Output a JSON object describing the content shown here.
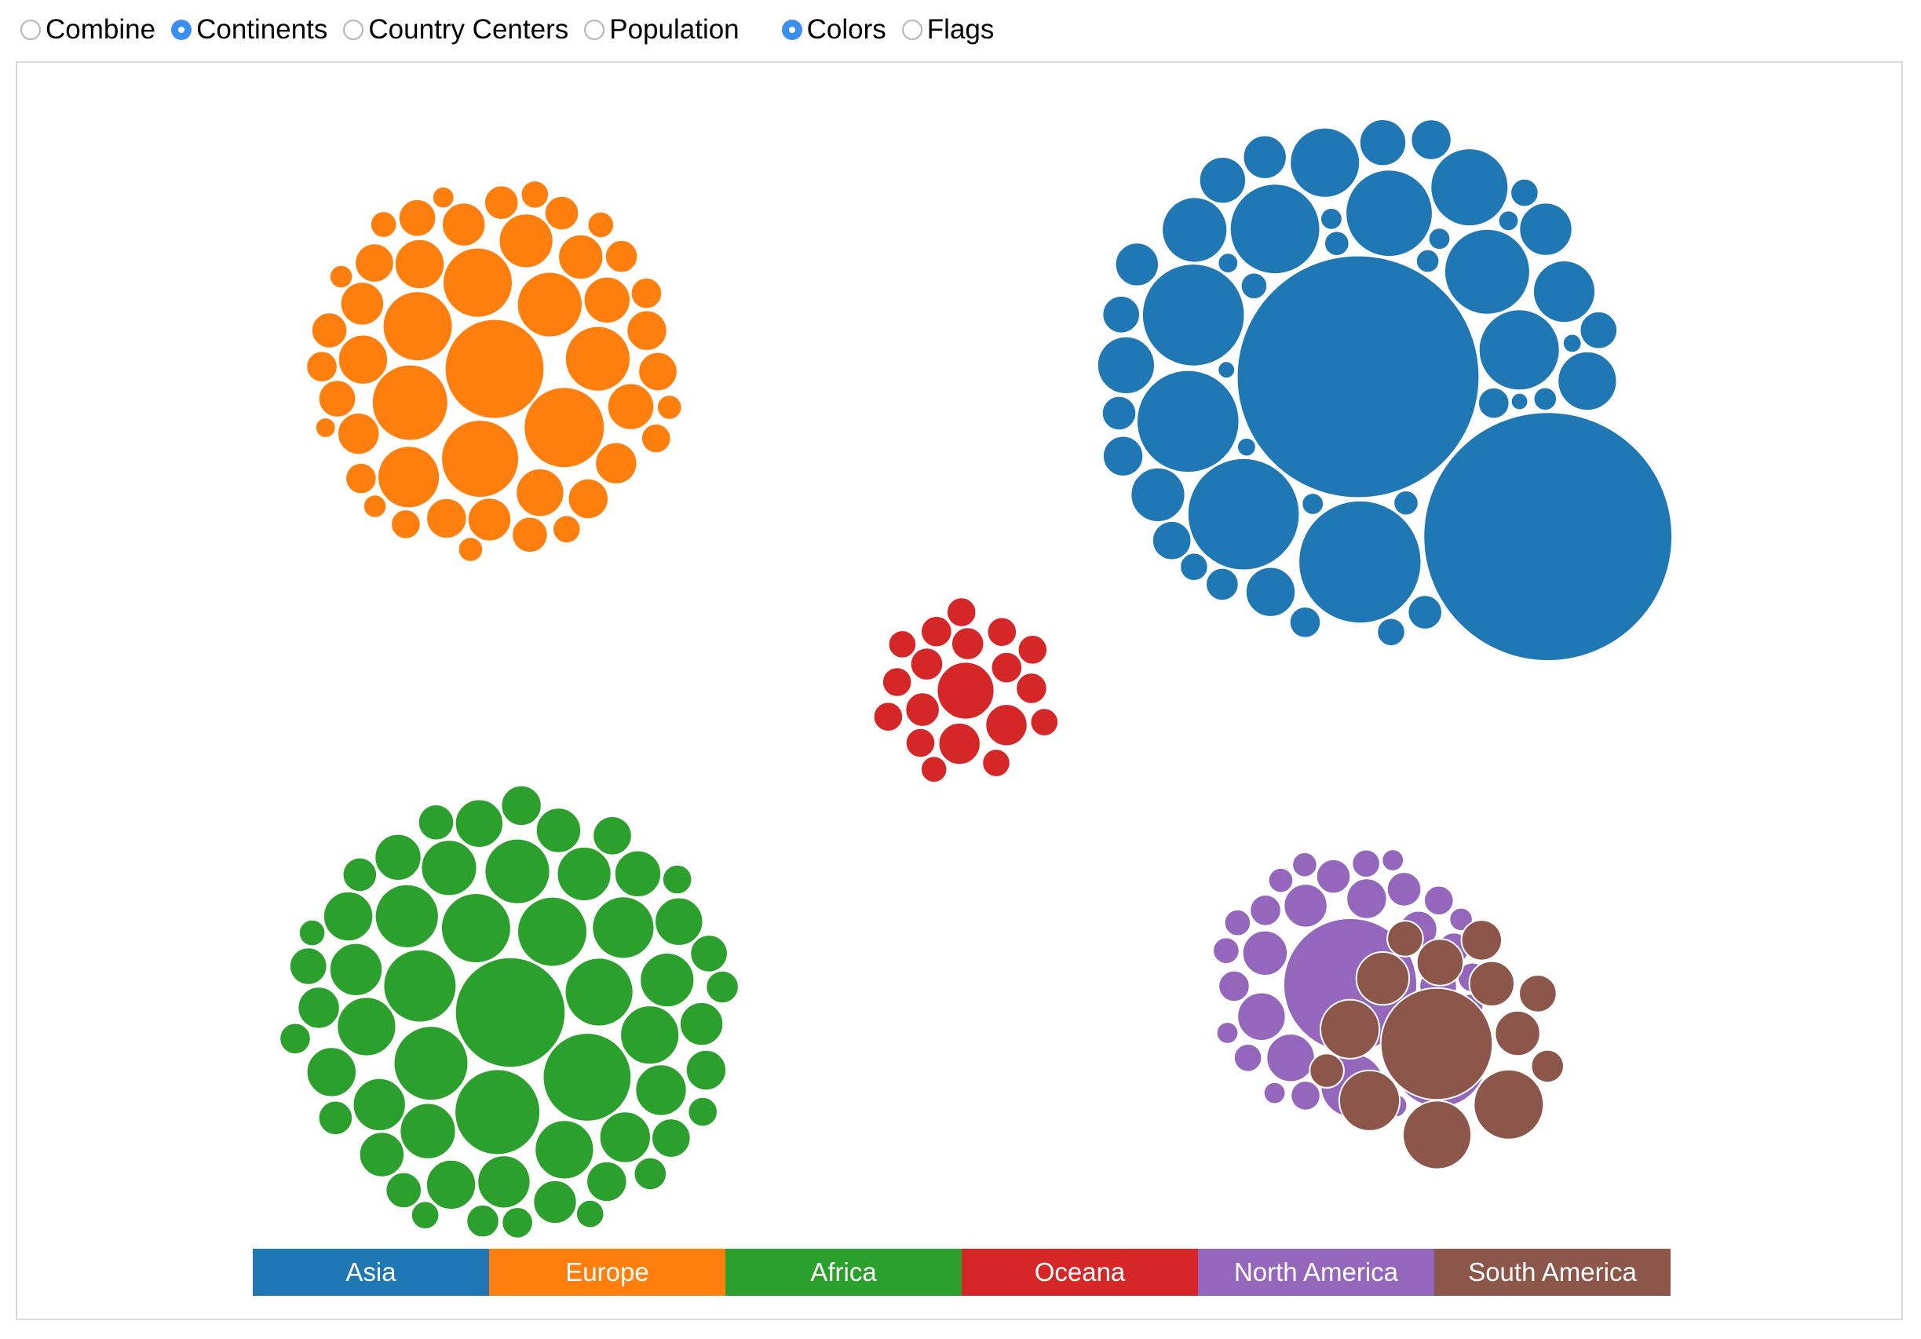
{
  "controls": {
    "combine": "Combine",
    "continents": "Continents",
    "country_centers": "Country Centers",
    "population": "Population",
    "colors": "Colors",
    "flags": "Flags",
    "selected_grouping": "Continents",
    "selected_display": "Colors"
  },
  "chart_data": {
    "type": "bubble-cluster",
    "title": "",
    "legend": [
      {
        "name": "Asia",
        "color": "#1f77b4"
      },
      {
        "name": "Europe",
        "color": "#ff7f0e"
      },
      {
        "name": "Africa",
        "color": "#2ca02c"
      },
      {
        "name": "Oceana",
        "color": "#d62728"
      },
      {
        "name": "North America",
        "color": "#9467bd"
      },
      {
        "name": "South America",
        "color": "#8c564b"
      }
    ],
    "groups": [
      {
        "name": "Asia",
        "color": "#1f77b4",
        "count": 50,
        "large": [
          156,
          160,
          79,
          72,
          66,
          66,
          58,
          56,
          55,
          52,
          50,
          45,
          42,
          40,
          38,
          37,
          35,
          34,
          32,
          30,
          30,
          28,
          28,
          26,
          26,
          25,
          24,
          24,
          22,
          22,
          21,
          20,
          20,
          18,
          18,
          18,
          17,
          16,
          16,
          15,
          15,
          14,
          14,
          14,
          13,
          13,
          12,
          12,
          11,
          11
        ]
      },
      {
        "name": "Europe",
        "color": "#ff7f0e",
        "count": 48,
        "large": [
          64,
          52,
          50,
          49,
          45,
          45,
          42,
          42,
          40,
          35,
          32,
          32,
          31,
          30,
          30,
          29,
          28,
          28,
          28,
          27,
          27,
          26,
          26,
          26,
          25,
          25,
          24,
          24,
          23,
          23,
          22,
          22,
          21,
          20,
          20,
          20,
          19,
          19,
          18,
          18,
          17,
          17,
          16,
          16,
          15,
          15,
          14,
          13
        ]
      },
      {
        "name": "Africa",
        "color": "#2ca02c",
        "count": 56,
        "large": [
          71,
          57,
          55,
          48,
          47,
          45,
          45,
          44,
          42,
          41,
          40,
          38,
          38,
          38,
          36,
          36,
          35,
          35,
          34,
          34,
          34,
          33,
          33,
          32,
          32,
          32,
          31,
          31,
          30,
          30,
          29,
          29,
          28,
          28,
          27,
          26,
          26,
          26,
          25,
          25,
          24,
          24,
          23,
          23,
          22,
          22,
          21,
          21,
          21,
          20,
          20,
          19,
          19,
          18,
          18,
          17
        ]
      },
      {
        "name": "Oceana",
        "color": "#d62728",
        "count": 19,
        "large": [
          37,
          27,
          27,
          22,
          21,
          21,
          20,
          20,
          20,
          19,
          19,
          19,
          19,
          19,
          19,
          18,
          18,
          18,
          17
        ]
      },
      {
        "name": "North America",
        "color": "#9467bd",
        "count": 30,
        "large": [
          86,
          61,
          41,
          31,
          31,
          29,
          28,
          26,
          24,
          24,
          22,
          22,
          20,
          20,
          20,
          19,
          19,
          19,
          18,
          18,
          17,
          17,
          16,
          16,
          16,
          15,
          15,
          14,
          14,
          14
        ]
      },
      {
        "name": "South America",
        "color": "#8c564b",
        "count": 14,
        "large": [
          72,
          45,
          44,
          39,
          38,
          34,
          30,
          29,
          29,
          26,
          24,
          23,
          22,
          21
        ]
      }
    ]
  }
}
